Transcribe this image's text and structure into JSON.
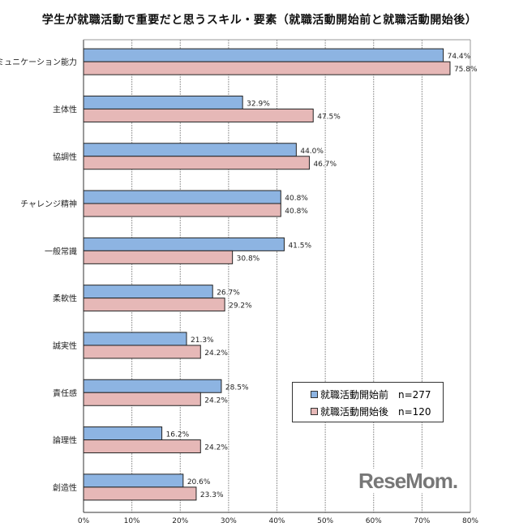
{
  "chart_data": {
    "type": "bar",
    "orientation": "horizontal",
    "title": "学生が就職活動で重要だと思うスキル・要素（就職活動開始前と就職活動開始後）",
    "categories": [
      "コミュニケーション能力",
      "主体性",
      "協調性",
      "チャレンジ精神",
      "一般常識",
      "柔軟性",
      "誠実性",
      "責任感",
      "論理性",
      "創造性"
    ],
    "series": [
      {
        "name": "就職活動開始前　n=277",
        "color": "#8db4e2",
        "values": [
          74.4,
          32.9,
          44.0,
          40.8,
          41.5,
          26.7,
          21.3,
          28.5,
          16.2,
          20.6
        ]
      },
      {
        "name": "就職活動開始後　n=120",
        "color": "#e6b8b7",
        "values": [
          75.8,
          47.5,
          46.7,
          40.8,
          30.8,
          29.2,
          24.2,
          24.2,
          24.2,
          23.3
        ]
      }
    ],
    "xlim": [
      0,
      80
    ],
    "xticks": [
      "0%",
      "10%",
      "20%",
      "30%",
      "40%",
      "50%",
      "60%",
      "70%",
      "80%"
    ],
    "grid": true,
    "legend_position": "bottom-right"
  },
  "watermark": "ReseMom"
}
